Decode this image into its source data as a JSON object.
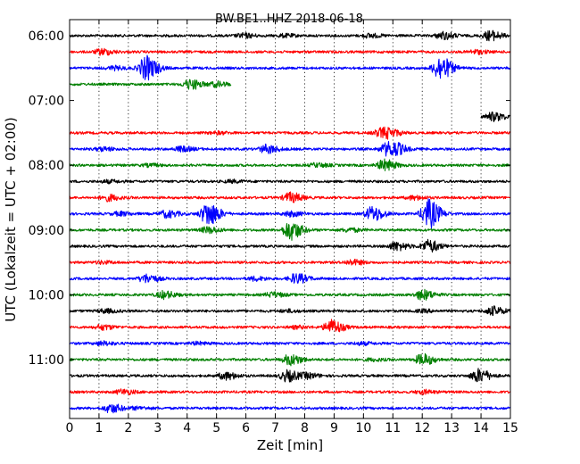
{
  "chart_data": {
    "type": "line",
    "title": "BW.BE1..HHZ 2018-06-18",
    "xlabel": "Zeit  [min]",
    "ylabel": "UTC (Lokalzeit = UTC + 02:00)",
    "xlim": [
      0,
      15
    ],
    "x_ticks": [
      "0",
      "1",
      "2",
      "3",
      "4",
      "5",
      "6",
      "7",
      "8",
      "9",
      "10",
      "11",
      "12",
      "13",
      "14",
      "15"
    ],
    "y_ticks": [
      "06:00",
      "07:00",
      "08:00",
      "09:00",
      "10:00",
      "11:00"
    ],
    "grid": "vertical dotted",
    "trace_interval_min": 15,
    "trace_colors": [
      "#000000",
      "#ff0000",
      "#0000ff",
      "#008000"
    ],
    "traces": [
      {
        "start": "06:00",
        "events": [
          [
            5.9,
            0.18
          ],
          [
            12.7,
            0.3
          ],
          [
            14.3,
            0.4
          ],
          [
            10.2,
            0.15
          ],
          [
            7.3,
            0.12
          ]
        ]
      },
      {
        "start": "06:15",
        "events": [
          [
            1.1,
            0.25
          ],
          [
            13.8,
            0.15
          ]
        ]
      },
      {
        "start": "06:30",
        "events": [
          [
            2.6,
            1.0
          ],
          [
            12.6,
            1.0
          ],
          [
            1.5,
            0.15
          ]
        ]
      },
      {
        "start": "06:45",
        "events": [
          [
            4.1,
            0.4
          ],
          [
            5.0,
            0.2
          ]
        ],
        "end_min": 5.5
      },
      {
        "start": "07:15",
        "events": [
          [
            14.4,
            0.35
          ]
        ],
        "start_min": 14.0
      },
      {
        "start": "07:30",
        "events": [
          [
            10.6,
            0.35
          ],
          [
            10.9,
            0.2
          ],
          [
            5.0,
            0.1
          ]
        ]
      },
      {
        "start": "07:45",
        "events": [
          [
            3.8,
            0.2
          ],
          [
            6.7,
            0.35
          ],
          [
            10.8,
            0.5
          ],
          [
            11.1,
            0.3
          ],
          [
            1.1,
            0.15
          ]
        ]
      },
      {
        "start": "08:00",
        "events": [
          [
            10.7,
            0.45
          ],
          [
            8.4,
            0.15
          ],
          [
            2.7,
            0.1
          ]
        ]
      },
      {
        "start": "08:15",
        "events": [
          [
            1.3,
            0.1
          ],
          [
            5.5,
            0.1
          ]
        ]
      },
      {
        "start": "08:30",
        "events": [
          [
            7.5,
            0.4
          ],
          [
            1.3,
            0.25
          ],
          [
            11.7,
            0.15
          ]
        ]
      },
      {
        "start": "08:45",
        "events": [
          [
            4.7,
            1.0
          ],
          [
            12.2,
            1.2
          ],
          [
            10.3,
            0.6
          ],
          [
            3.3,
            0.3
          ],
          [
            7.5,
            0.2
          ],
          [
            1.7,
            0.15
          ]
        ]
      },
      {
        "start": "09:00",
        "events": [
          [
            7.5,
            0.8
          ],
          [
            4.7,
            0.25
          ],
          [
            9.5,
            0.15
          ]
        ]
      },
      {
        "start": "09:15",
        "events": [
          [
            11.1,
            0.35
          ],
          [
            12.2,
            0.5
          ]
        ]
      },
      {
        "start": "09:30",
        "events": [
          [
            9.6,
            0.2
          ],
          [
            1.1,
            0.1
          ]
        ]
      },
      {
        "start": "09:45",
        "events": [
          [
            2.6,
            0.35
          ],
          [
            7.7,
            0.4
          ],
          [
            6.3,
            0.15
          ]
        ]
      },
      {
        "start": "10:00",
        "events": [
          [
            3.2,
            0.3
          ],
          [
            6.9,
            0.2
          ],
          [
            12.0,
            0.4
          ]
        ]
      },
      {
        "start": "10:15",
        "events": [
          [
            14.4,
            0.35
          ],
          [
            1.2,
            0.15
          ],
          [
            7.4,
            0.1
          ],
          [
            12.0,
            0.1
          ]
        ]
      },
      {
        "start": "10:30",
        "events": [
          [
            8.9,
            0.6
          ],
          [
            1.1,
            0.2
          ],
          [
            7.7,
            0.1
          ]
        ]
      },
      {
        "start": "10:45",
        "events": [
          [
            1.1,
            0.15
          ],
          [
            4.3,
            0.1
          ],
          [
            9.9,
            0.1
          ]
        ]
      },
      {
        "start": "11:00",
        "events": [
          [
            7.5,
            0.45
          ],
          [
            12.0,
            0.45
          ],
          [
            10.3,
            0.1
          ]
        ]
      },
      {
        "start": "11:15",
        "events": [
          [
            7.4,
            0.45
          ],
          [
            13.9,
            0.55
          ],
          [
            5.3,
            0.3
          ],
          [
            8.1,
            0.2
          ]
        ]
      },
      {
        "start": "11:30",
        "events": [
          [
            1.8,
            0.2
          ],
          [
            12.0,
            0.15
          ]
        ]
      },
      {
        "start": "11:45",
        "events": [
          [
            1.4,
            0.35
          ],
          [
            2.3,
            0.1
          ]
        ]
      }
    ]
  }
}
